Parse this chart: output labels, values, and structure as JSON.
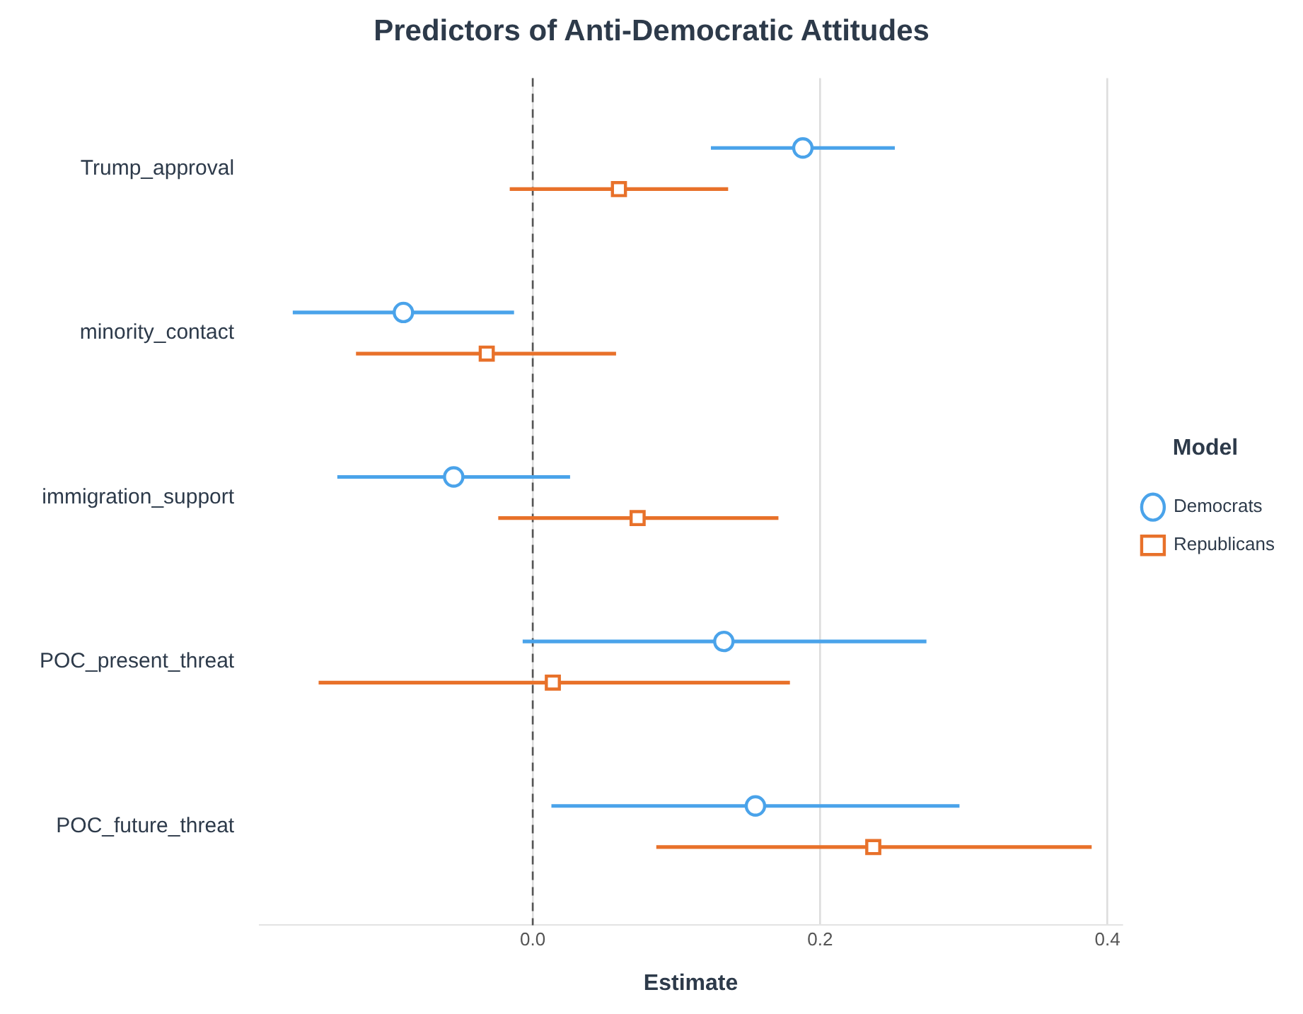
{
  "chart_data": {
    "type": "scatter",
    "title": "Predictors of Anti-Democratic Attitudes",
    "xlabel": "Estimate",
    "legend_title": "Model",
    "orientation": "horizontal",
    "categories": [
      "Trump_approval",
      "minority_contact",
      "immigration_support",
      "POC_present_threat",
      "POC_future_threat"
    ],
    "series": [
      {
        "name": "Democrats",
        "color": "#4aa3ea",
        "marker": "circle",
        "values": [
          0.188,
          -0.09,
          -0.055,
          0.133,
          0.155
        ],
        "errors": [
          [
            0.124,
            0.252
          ],
          [
            -0.167,
            -0.013
          ],
          [
            -0.136,
            0.026
          ],
          [
            -0.007,
            0.274
          ],
          [
            0.013,
            0.297
          ]
        ]
      },
      {
        "name": "Republicans",
        "color": "#e8712a",
        "marker": "square",
        "values": [
          0.06,
          -0.032,
          0.073,
          0.014,
          0.237
        ],
        "errors": [
          [
            -0.016,
            0.136
          ],
          [
            -0.123,
            0.058
          ],
          [
            -0.024,
            0.171
          ],
          [
            -0.149,
            0.179
          ],
          [
            0.086,
            0.389
          ]
        ]
      }
    ],
    "xlim": [
      -0.19,
      0.41
    ],
    "xticks": [
      {
        "value": 0,
        "label": "0.0"
      },
      {
        "value": 0.2,
        "label": "0.2"
      },
      {
        "value": 0.4,
        "label": "0.4"
      }
    ],
    "ref_lines": [
      {
        "axis": "x",
        "value": 0,
        "color": "#555555",
        "line_style": "dashed"
      }
    ],
    "grid": "x",
    "legend": "right"
  }
}
